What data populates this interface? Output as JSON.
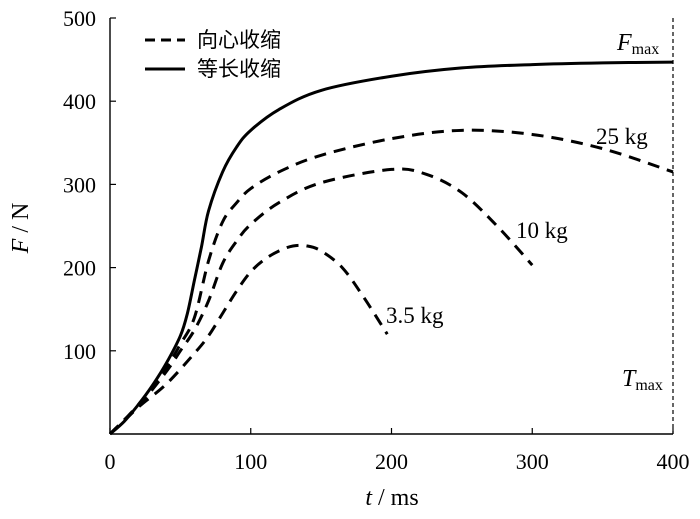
{
  "chart_data": {
    "type": "line",
    "xlabel": {
      "var": "t",
      "unit": " / ms"
    },
    "ylabel": {
      "var": "F",
      "unit": " / N"
    },
    "xlim": [
      0,
      400
    ],
    "ylim": [
      0,
      500
    ],
    "xticks": [
      0,
      100,
      200,
      300,
      400
    ],
    "yticks": [
      100,
      200,
      300,
      400,
      500
    ],
    "grid": false,
    "legend": {
      "placement": "top-left",
      "entries": [
        {
          "label": "向心收缩",
          "style": "dashed"
        },
        {
          "label": "等长收缩",
          "style": "solid"
        }
      ]
    },
    "series": [
      {
        "name": "等长收缩",
        "style": "solid",
        "x": [
          0,
          10,
          20,
          30,
          40,
          50,
          55,
          60,
          65,
          70,
          80,
          90,
          100,
          120,
          150,
          200,
          250,
          300,
          350,
          400
        ],
        "y": [
          0,
          15,
          35,
          58,
          85,
          118,
          145,
          185,
          225,
          268,
          315,
          345,
          365,
          390,
          413,
          430,
          440,
          444,
          446,
          447
        ]
      },
      {
        "name": "25 kg",
        "style": "dashed",
        "x": [
          0,
          20,
          40,
          50,
          60,
          70,
          80,
          90,
          100,
          120,
          150,
          200,
          250,
          300,
          350,
          400
        ],
        "y": [
          0,
          35,
          80,
          108,
          140,
          208,
          255,
          278,
          295,
          315,
          335,
          355,
          365,
          360,
          343,
          315
        ]
      },
      {
        "name": "10 kg",
        "style": "dashed",
        "x": [
          0,
          20,
          40,
          50,
          60,
          70,
          80,
          90,
          100,
          120,
          150,
          200,
          225,
          250,
          275,
          300
        ],
        "y": [
          0,
          33,
          75,
          100,
          125,
          160,
          205,
          232,
          252,
          278,
          302,
          318,
          312,
          290,
          250,
          203
        ]
      },
      {
        "name": "3.5 kg",
        "style": "dashed",
        "x": [
          0,
          20,
          40,
          60,
          70,
          80,
          90,
          100,
          110,
          120,
          130,
          140,
          150,
          165,
          180,
          197
        ],
        "y": [
          0,
          32,
          60,
          97,
          118,
          145,
          172,
          195,
          210,
          220,
          226,
          226,
          220,
          200,
          165,
          120
        ]
      }
    ],
    "annotations": [
      {
        "text": "25 kg",
        "series": "25 kg"
      },
      {
        "text": "10 kg",
        "series": "10 kg"
      },
      {
        "text": "3.5 kg",
        "series": "3.5 kg"
      }
    ],
    "markers": {
      "fmax": {
        "var": "F",
        "sub": "max",
        "y": 447
      },
      "tmax": {
        "var": "T",
        "sub": "max",
        "x": 400
      }
    }
  }
}
